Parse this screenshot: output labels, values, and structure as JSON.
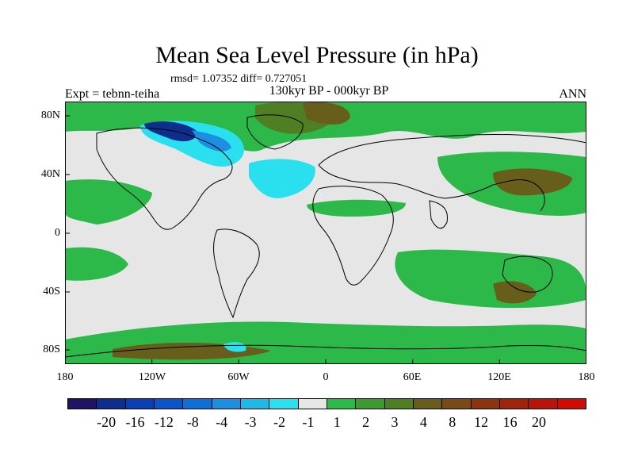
{
  "title": "Mean Sea Level Pressure (in hPa)",
  "stats": "rmsd= 1.07352 diff= 0.727051",
  "experiment": "Expt = tebnn-teiha",
  "period": "130kyr BP - 000kyr BP",
  "season": "ANN",
  "map": {
    "lat_labels": [
      "80N",
      "40N",
      "0",
      "40S",
      "80S"
    ],
    "lon_labels": [
      "180",
      "120W",
      "60W",
      "0",
      "60E",
      "120E",
      "180"
    ],
    "colors": {
      "land_neutral": "#e6e6e6",
      "ocean_positive": "#2db84a",
      "positive_mid": "#4f8a2a",
      "positive_high": "#6e5a1e",
      "negative_low": "#2fd9e6",
      "negative_mid": "#1a9bd9",
      "negative_high": "#0b2b9a",
      "coast": "#000000"
    }
  },
  "legend": {
    "colors": [
      "#1e1463",
      "#0d2e8c",
      "#0a3fb3",
      "#0a55c7",
      "#0e6fd6",
      "#1d8fe0",
      "#20b9e6",
      "#2be0ee",
      "#e6e6e6",
      "#2db84a",
      "#3c9a2e",
      "#4f7f22",
      "#665e1a",
      "#7a4a14",
      "#8c3410",
      "#a0230c",
      "#b81409",
      "#d00b06"
    ],
    "labels": [
      "-20",
      "-16",
      "-12",
      "-8",
      "-4",
      "-3",
      "-2",
      "-1",
      "1",
      "2",
      "3",
      "4",
      "8",
      "12",
      "16",
      "20"
    ]
  }
}
